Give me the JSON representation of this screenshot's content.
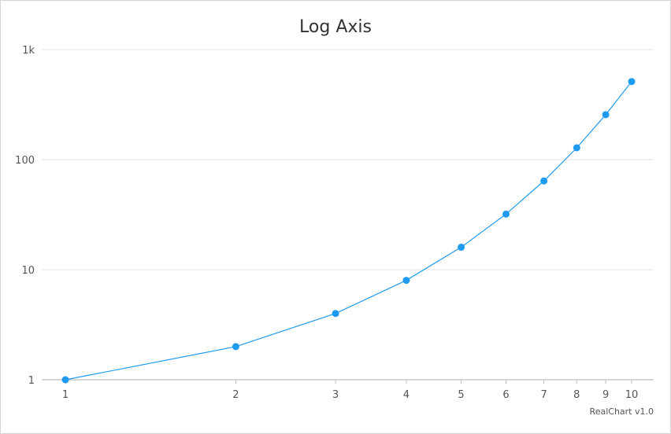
{
  "chart_data": {
    "type": "line",
    "title": "Log Axis",
    "credit": "RealChart v1.0",
    "x_axis": {
      "scale": "log",
      "range": [
        1,
        10
      ],
      "ticks": [
        1,
        2,
        3,
        4,
        5,
        6,
        7,
        8,
        9,
        10
      ],
      "tick_labels": [
        "1",
        "2",
        "3",
        "4",
        "5",
        "6",
        "7",
        "8",
        "9",
        "10"
      ]
    },
    "y_axis": {
      "scale": "log",
      "range": [
        1,
        1000
      ],
      "ticks": [
        1,
        10,
        100,
        1000
      ],
      "tick_labels": [
        "1",
        "10",
        "100",
        "1k"
      ],
      "grid": true
    },
    "series": [
      {
        "x": [
          1,
          2,
          3,
          4,
          5,
          6,
          7,
          8,
          9,
          10
        ],
        "values": [
          1,
          2,
          4,
          8,
          16,
          32,
          64,
          128,
          256,
          512
        ],
        "color": "#1e9bf0"
      }
    ],
    "legend": "none"
  }
}
